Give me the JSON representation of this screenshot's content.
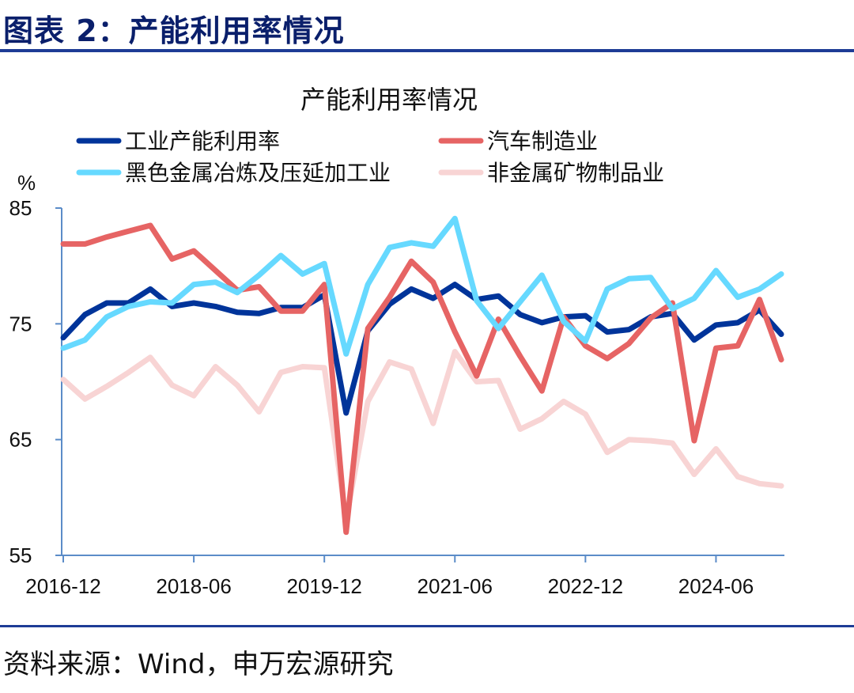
{
  "header": {
    "title": "图表 2：产能利用率情况"
  },
  "footer": {
    "source": "资料来源：Wind，申万宏源研究"
  },
  "chart_data": {
    "type": "line",
    "title": "产能利用率情况",
    "ylabel": "%",
    "ylim": [
      55,
      85
    ],
    "yticks": [
      55,
      65,
      75,
      85
    ],
    "xticks": [
      "2016-12",
      "2018-06",
      "2019-12",
      "2021-06",
      "2022-12",
      "2024-06"
    ],
    "legend_position": "top",
    "grid": false,
    "x": [
      "2016-12",
      "2017-03",
      "2017-06",
      "2017-09",
      "2017-12",
      "2018-03",
      "2018-06",
      "2018-09",
      "2018-12",
      "2019-03",
      "2019-06",
      "2019-09",
      "2019-12",
      "2020-03",
      "2020-06",
      "2020-09",
      "2020-12",
      "2021-03",
      "2021-06",
      "2021-09",
      "2021-12",
      "2022-03",
      "2022-06",
      "2022-09",
      "2022-12",
      "2023-03",
      "2023-06",
      "2023-09",
      "2023-12",
      "2024-03",
      "2024-06",
      "2024-09",
      "2024-12",
      "2025-03"
    ],
    "series": [
      {
        "name": "工业产能利用率",
        "color": "#00349A",
        "values": [
          73.8,
          75.8,
          76.8,
          76.8,
          78.0,
          76.5,
          76.8,
          76.5,
          76.0,
          75.9,
          76.4,
          76.4,
          77.5,
          67.3,
          74.4,
          76.7,
          78.0,
          77.2,
          78.4,
          77.1,
          77.4,
          75.8,
          75.1,
          75.6,
          75.7,
          74.3,
          74.5,
          75.6,
          75.9,
          73.6,
          74.9,
          75.1,
          76.2,
          74.1
        ]
      },
      {
        "name": "汽车制造业",
        "color": "#E66464",
        "values": [
          81.9,
          81.9,
          82.5,
          83.0,
          83.5,
          80.6,
          81.3,
          79.6,
          77.9,
          78.2,
          76.1,
          76.1,
          78.4,
          57.0,
          74.6,
          77.3,
          80.4,
          78.6,
          74.3,
          70.5,
          75.4,
          72.2,
          69.2,
          75.6,
          73.1,
          72.0,
          73.3,
          75.5,
          76.8,
          64.9,
          72.9,
          73.1,
          77.1,
          71.9
        ]
      },
      {
        "name": "黑色金属冶炼及压延加工业",
        "color": "#66D9FF",
        "values": [
          72.9,
          73.6,
          75.6,
          76.5,
          76.9,
          76.8,
          78.4,
          78.6,
          77.7,
          79.2,
          80.9,
          79.3,
          80.2,
          72.4,
          78.4,
          81.6,
          82.0,
          81.7,
          84.1,
          77.0,
          74.6,
          76.9,
          79.2,
          75.2,
          73.5,
          78.0,
          78.9,
          79.0,
          76.3,
          77.2,
          79.6,
          77.3,
          78.0,
          79.3
        ]
      },
      {
        "name": "非金属矿物制品业",
        "color": "#F8D4D4",
        "values": [
          70.2,
          68.5,
          69.6,
          70.8,
          72.1,
          69.7,
          68.8,
          71.3,
          69.7,
          67.4,
          70.8,
          71.3,
          71.2,
          58.1,
          68.3,
          71.7,
          71.1,
          66.4,
          72.6,
          70.0,
          70.1,
          65.9,
          66.8,
          68.3,
          67.2,
          63.9,
          65.0,
          64.9,
          64.7,
          62.0,
          64.2,
          61.8,
          61.2,
          61.0
        ]
      }
    ]
  }
}
